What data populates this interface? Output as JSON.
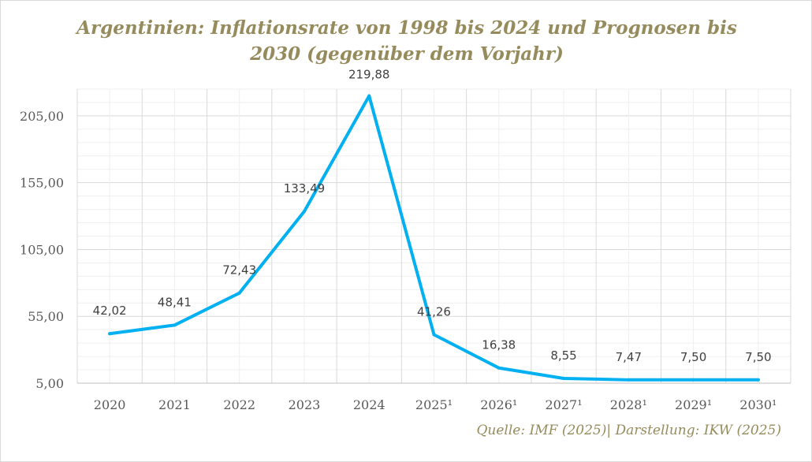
{
  "chart_data": {
    "type": "line",
    "title_line1": "Argentinien: Inflationsrate von 1998 bis 2024 und Prognosen bis",
    "title_line2": "2030 (gegenüber dem Vorjahr)",
    "categories": [
      "2020",
      "2021",
      "2022",
      "2023",
      "2024",
      "2025¹",
      "2026¹",
      "2027¹",
      "2028¹",
      "2029¹",
      "2030¹"
    ],
    "series": [
      {
        "name": "Inflationsrate",
        "values": [
          42.02,
          48.41,
          72.43,
          133.49,
          219.88,
          41.26,
          16.38,
          8.55,
          7.47,
          7.5,
          7.5
        ]
      }
    ],
    "data_labels": [
      "42,02",
      "48,41",
      "72,43",
      "133,49",
      "219,88",
      "41,26",
      "16,38",
      "8,55",
      "7,47",
      "7,50",
      "7,50"
    ],
    "y_ticks": [
      5,
      55,
      105,
      155,
      205
    ],
    "y_tick_labels": [
      "5,00",
      "55,00",
      "105,00",
      "155,00",
      "205,00"
    ],
    "ylim": [
      5,
      225
    ],
    "minor_step": 10,
    "xlabel": "",
    "ylabel": "",
    "grid": true,
    "line_color": "#00b0f0",
    "source": "Quelle: IMF (2025)| Darstellung: IKW (2025)"
  }
}
